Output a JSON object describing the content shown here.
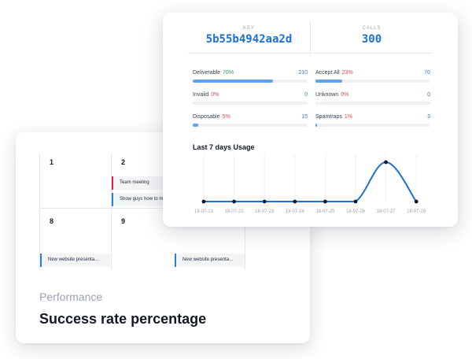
{
  "calendar": {
    "days": [
      "1",
      "2",
      "8",
      "9"
    ],
    "events": [
      {
        "label": "Team meeting",
        "color": "#e11d48"
      },
      {
        "label": "Show guys how to m",
        "color": "#2b7be4"
      },
      {
        "label": "New website presenta...",
        "color": "#2b7be4"
      },
      {
        "label": "New website presenta...",
        "color": "#2b7be4"
      }
    ]
  },
  "performance": {
    "label": "Performance",
    "title": "Success rate percentage"
  },
  "key_box": {
    "label": "KEY",
    "value": "5b55b4942aa2d"
  },
  "calls_box": {
    "label": "CALLS",
    "value": "300"
  },
  "stats": [
    {
      "name": "Deliverable",
      "pct": "70%",
      "pct_color": "green",
      "count": "210",
      "fraction": 0.7
    },
    {
      "name": "Accept All",
      "pct": "23%",
      "pct_color": "red",
      "count": "70",
      "fraction": 0.23
    },
    {
      "name": "Invalid",
      "pct": "0%",
      "pct_color": "red",
      "count": "0",
      "fraction": 0.0
    },
    {
      "name": "Unknown",
      "pct": "0%",
      "pct_color": "red",
      "count": "0",
      "fraction": 0.0
    },
    {
      "name": "Disposable",
      "pct": "5%",
      "pct_color": "red",
      "count": "15",
      "fraction": 0.05
    },
    {
      "name": "Spamtraps",
      "pct": "1%",
      "pct_color": "red",
      "count": "3",
      "fraction": 0.01
    }
  ],
  "usage": {
    "title": "Last 7 days Usage"
  },
  "chart_data": {
    "type": "line",
    "title": "Last 7 days Usage",
    "xlabel": "",
    "ylabel": "",
    "x": [
      "18-07-21",
      "18-07-22",
      "18-07-23",
      "18-07-24",
      "18-07-25",
      "18-07-26",
      "18-07-27",
      "18-07-28"
    ],
    "series": [
      {
        "values": [
          0,
          0,
          0,
          0,
          0,
          0,
          300,
          0
        ]
      }
    ],
    "ylim": [
      0,
      300
    ],
    "grid": true,
    "color": "#1b6fd6"
  }
}
